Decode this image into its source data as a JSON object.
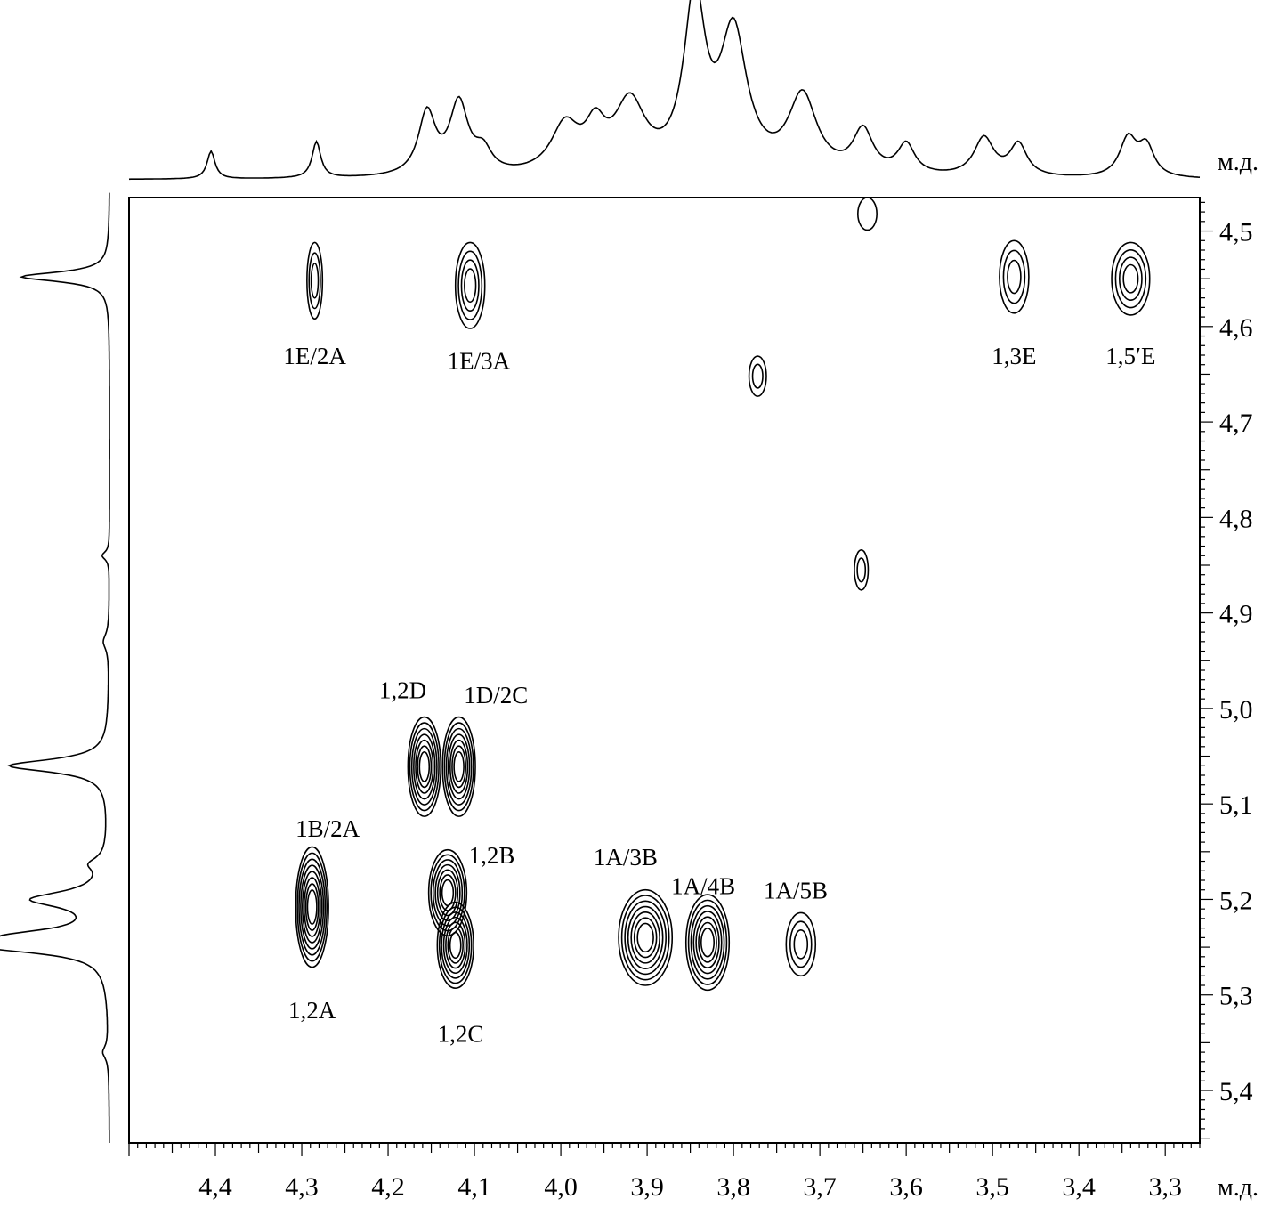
{
  "chart_data": {
    "type": "contour",
    "xlabel": "м.д.",
    "ylabel": "м.д.",
    "xlim": [
      4.5,
      3.26
    ],
    "ylim": [
      4.465,
      5.455
    ],
    "x_reversed": true,
    "x_ticks": [
      4.4,
      4.3,
      4.2,
      4.1,
      4.0,
      3.9,
      3.8,
      3.7,
      3.6,
      3.5,
      3.4,
      3.3
    ],
    "x_tick_labels": [
      "4,4",
      "4,3",
      "4,2",
      "4,1",
      "4,0",
      "3,9",
      "3,8",
      "3,7",
      "3,6",
      "3,5",
      "3,4",
      "3,3"
    ],
    "y_ticks": [
      4.5,
      4.6,
      4.7,
      4.8,
      4.9,
      5.0,
      5.1,
      5.2,
      5.3,
      5.4
    ],
    "y_tick_labels": [
      "4,5",
      "4,6",
      "4,7",
      "4,8",
      "4,9",
      "5,0",
      "5,1",
      "5,2",
      "5,3",
      "5,4"
    ],
    "cross_peaks": [
      {
        "label": "1E/2A",
        "x": 4.285,
        "y": 4.552,
        "wx": 0.009,
        "wy": 0.04,
        "levels": 3,
        "label_x": 4.285,
        "label_y": 4.63
      },
      {
        "label": "1E/3A",
        "x": 4.105,
        "y": 4.557,
        "wx": 0.017,
        "wy": 0.045,
        "levels": 4,
        "label_x": 4.095,
        "label_y": 4.635
      },
      {
        "label": "1,3E",
        "x": 3.475,
        "y": 4.548,
        "wx": 0.017,
        "wy": 0.038,
        "levels": 3,
        "label_x": 3.475,
        "label_y": 4.63
      },
      {
        "label": "1,5′E",
        "x": 3.34,
        "y": 4.55,
        "wx": 0.022,
        "wy": 0.038,
        "levels": 4,
        "label_x": 3.34,
        "label_y": 4.63
      },
      {
        "label": "",
        "x": 3.645,
        "y": 4.482,
        "wx": 0.011,
        "wy": 0.017,
        "levels": 1
      },
      {
        "label": "",
        "x": 3.772,
        "y": 4.652,
        "wx": 0.01,
        "wy": 0.021,
        "levels": 2
      },
      {
        "label": "",
        "x": 3.652,
        "y": 4.855,
        "wx": 0.008,
        "wy": 0.021,
        "levels": 2
      },
      {
        "label": "1,2D",
        "x": 4.158,
        "y": 5.061,
        "wx": 0.019,
        "wy": 0.052,
        "levels": 7,
        "label_x": 4.183,
        "label_y": 4.98
      },
      {
        "label": "1D/2C",
        "x": 4.118,
        "y": 5.061,
        "wx": 0.019,
        "wy": 0.052,
        "levels": 7,
        "label_x": 4.075,
        "label_y": 4.985
      },
      {
        "label": "1B/2A",
        "x": 4.288,
        "y": 5.208,
        "wx": 0.019,
        "wy": 0.063,
        "levels": 8,
        "label_x": 4.27,
        "label_y": 5.125
      },
      {
        "label": "1,2A",
        "x": 4.288,
        "y": 5.208,
        "wx": 0.019,
        "wy": 0.063,
        "levels": 0,
        "label_x": 4.288,
        "label_y": 5.315
      },
      {
        "label": "1,2B",
        "x": 4.131,
        "y": 5.193,
        "wx": 0.022,
        "wy": 0.045,
        "levels": 7,
        "label_x": 4.08,
        "label_y": 5.153
      },
      {
        "label": "1,2C",
        "x": 4.122,
        "y": 5.248,
        "wx": 0.021,
        "wy": 0.045,
        "levels": 7,
        "label_x": 4.116,
        "label_y": 5.34
      },
      {
        "label": "1A/3B",
        "x": 3.902,
        "y": 5.24,
        "wx": 0.031,
        "wy": 0.05,
        "levels": 7,
        "label_x": 3.925,
        "label_y": 5.155
      },
      {
        "label": "1A/4B",
        "x": 3.83,
        "y": 5.245,
        "wx": 0.025,
        "wy": 0.05,
        "levels": 7,
        "label_x": 3.835,
        "label_y": 5.185
      },
      {
        "label": "1A/5B",
        "x": 3.722,
        "y": 5.247,
        "wx": 0.017,
        "wy": 0.033,
        "levels": 3,
        "label_x": 3.728,
        "label_y": 5.19
      }
    ],
    "projection_top": [
      {
        "x": 4.405,
        "h": 0.13,
        "w": 0.0055
      },
      {
        "x": 4.283,
        "h": 0.17,
        "w": 0.006
      },
      {
        "x": 4.155,
        "h": 0.29,
        "w": 0.012
      },
      {
        "x": 4.118,
        "h": 0.33,
        "w": 0.013
      },
      {
        "x": 4.09,
        "h": 0.1,
        "w": 0.012
      },
      {
        "x": 3.995,
        "h": 0.22,
        "w": 0.02
      },
      {
        "x": 3.96,
        "h": 0.18,
        "w": 0.014
      },
      {
        "x": 3.92,
        "h": 0.32,
        "w": 0.022
      },
      {
        "x": 3.845,
        "h": 0.8,
        "w": 0.015
      },
      {
        "x": 3.8,
        "h": 0.64,
        "w": 0.019
      },
      {
        "x": 3.72,
        "h": 0.36,
        "w": 0.02
      },
      {
        "x": 3.65,
        "h": 0.2,
        "w": 0.014
      },
      {
        "x": 3.6,
        "h": 0.14,
        "w": 0.012
      },
      {
        "x": 3.51,
        "h": 0.18,
        "w": 0.014
      },
      {
        "x": 3.47,
        "h": 0.15,
        "w": 0.012
      },
      {
        "x": 3.343,
        "h": 0.18,
        "w": 0.012
      },
      {
        "x": 3.322,
        "h": 0.14,
        "w": 0.011
      }
    ],
    "projection_left": [
      {
        "y": 4.548,
        "h": 0.6,
        "w": 0.006
      },
      {
        "y": 5.06,
        "h": 0.68,
        "w": 0.008
      },
      {
        "y": 5.163,
        "h": 0.1,
        "w": 0.008
      },
      {
        "y": 5.2,
        "h": 0.5,
        "w": 0.01
      },
      {
        "y": 5.238,
        "h": 0.5,
        "w": 0.008
      },
      {
        "y": 5.25,
        "h": 0.68,
        "w": 0.008
      },
      {
        "y": 4.84,
        "h": 0.05,
        "w": 0.005
      },
      {
        "y": 4.93,
        "h": 0.04,
        "w": 0.01
      },
      {
        "y": 5.36,
        "h": 0.04,
        "w": 0.008
      }
    ]
  }
}
